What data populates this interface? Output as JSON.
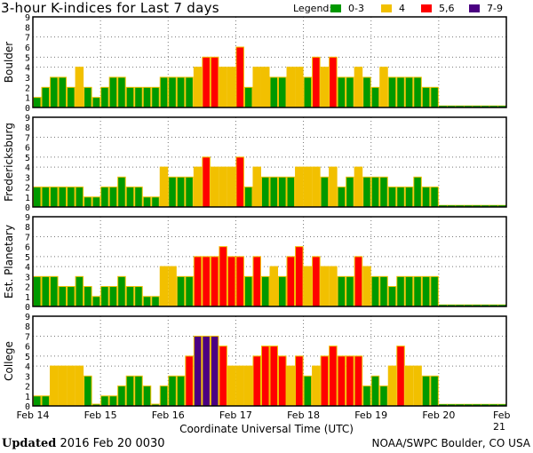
{
  "chart_data": {
    "type": "bar",
    "title": "3-hour K-indices for Last 7 days",
    "legend_label": "Legend:",
    "legend": [
      {
        "label": "0-3",
        "color": "#009900"
      },
      {
        "label": "4",
        "color": "#f2c000"
      },
      {
        "label": "5,6",
        "color": "#ff0000"
      },
      {
        "label": "7-9",
        "color": "#4b0082"
      }
    ],
    "xlabel": "Coordinate Universal Time (UTC)",
    "x_ticks": [
      "Feb 14",
      "Feb 15",
      "Feb 16",
      "Feb 17",
      "Feb 18",
      "Feb 19",
      "Feb 20",
      "Feb 21"
    ],
    "ylim": [
      0,
      9
    ],
    "y_ticks": [
      "0",
      "1",
      "2",
      "3",
      "4",
      "5",
      "6",
      "7",
      "8",
      "9"
    ],
    "bars_per_day": 8,
    "grid": true,
    "panels": [
      {
        "name": "Boulder",
        "values": [
          1,
          2,
          3,
          3,
          2,
          4,
          2,
          1,
          2,
          3,
          3,
          2,
          2,
          2,
          2,
          3,
          3,
          3,
          3,
          4,
          5,
          5,
          4,
          4,
          6,
          2,
          4,
          4,
          3,
          3,
          4,
          4,
          3,
          5,
          4,
          5,
          3,
          3,
          4,
          3,
          2,
          4,
          3,
          3,
          3,
          3,
          2,
          2
        ]
      },
      {
        "name": "Fredericksburg",
        "values": [
          2,
          2,
          2,
          2,
          2,
          2,
          1,
          1,
          2,
          2,
          3,
          2,
          2,
          1,
          1,
          4,
          3,
          3,
          3,
          4,
          5,
          4,
          4,
          4,
          5,
          2,
          4,
          3,
          3,
          3,
          3,
          4,
          4,
          4,
          3,
          4,
          2,
          3,
          4,
          3,
          3,
          3,
          2,
          2,
          2,
          3,
          2,
          2
        ]
      },
      {
        "name": "Est. Planetary",
        "values": [
          3,
          3,
          3,
          2,
          2,
          3,
          2,
          1,
          2,
          2,
          3,
          2,
          2,
          1,
          1,
          4,
          4,
          3,
          3,
          5,
          5,
          5,
          6,
          5,
          5,
          3,
          5,
          3,
          4,
          3,
          5,
          6,
          4,
          5,
          4,
          4,
          3,
          3,
          5,
          4,
          3,
          3,
          2,
          3,
          3,
          3,
          3,
          3
        ]
      },
      {
        "name": "College",
        "values": [
          1,
          1,
          4,
          4,
          4,
          4,
          3,
          0,
          1,
          1,
          2,
          3,
          3,
          2,
          0,
          2,
          3,
          3,
          5,
          7,
          7,
          7,
          6,
          4,
          4,
          4,
          5,
          6,
          6,
          5,
          4,
          5,
          3,
          4,
          5,
          6,
          5,
          5,
          5,
          2,
          3,
          2,
          4,
          6,
          4,
          4,
          3,
          3
        ]
      }
    ]
  },
  "footer": {
    "updated_label": "Updated",
    "updated_value": "2016 Feb 20 0030",
    "credit": "NOAA/SWPC Boulder, CO USA"
  }
}
